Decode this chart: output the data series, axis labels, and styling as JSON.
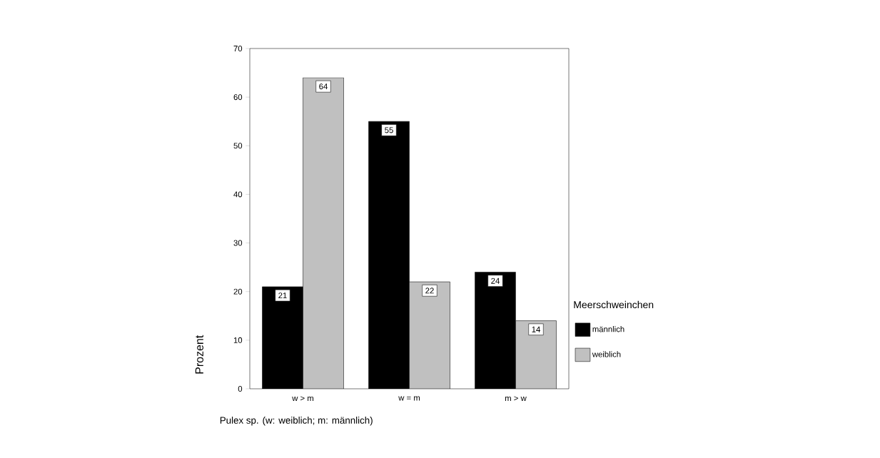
{
  "chart_data": {
    "type": "bar",
    "xlabel": "Pulex sp. (w: weiblich; m: männlich)",
    "ylabel": "Prozent",
    "legend_title": "Meerschweinchen",
    "categories": [
      "w > m",
      "w = m",
      "m > w"
    ],
    "series": [
      {
        "name": "männlich",
        "color": "#000000",
        "values": [
          21,
          55,
          24
        ]
      },
      {
        "name": "weiblich",
        "color": "#c0c0c0",
        "values": [
          64,
          22,
          14
        ]
      }
    ],
    "ylim": [
      0,
      70
    ],
    "yticks": [
      0,
      10,
      20,
      30,
      40,
      50,
      60,
      70
    ],
    "data_labels": true,
    "legend": "right",
    "grid": false
  }
}
